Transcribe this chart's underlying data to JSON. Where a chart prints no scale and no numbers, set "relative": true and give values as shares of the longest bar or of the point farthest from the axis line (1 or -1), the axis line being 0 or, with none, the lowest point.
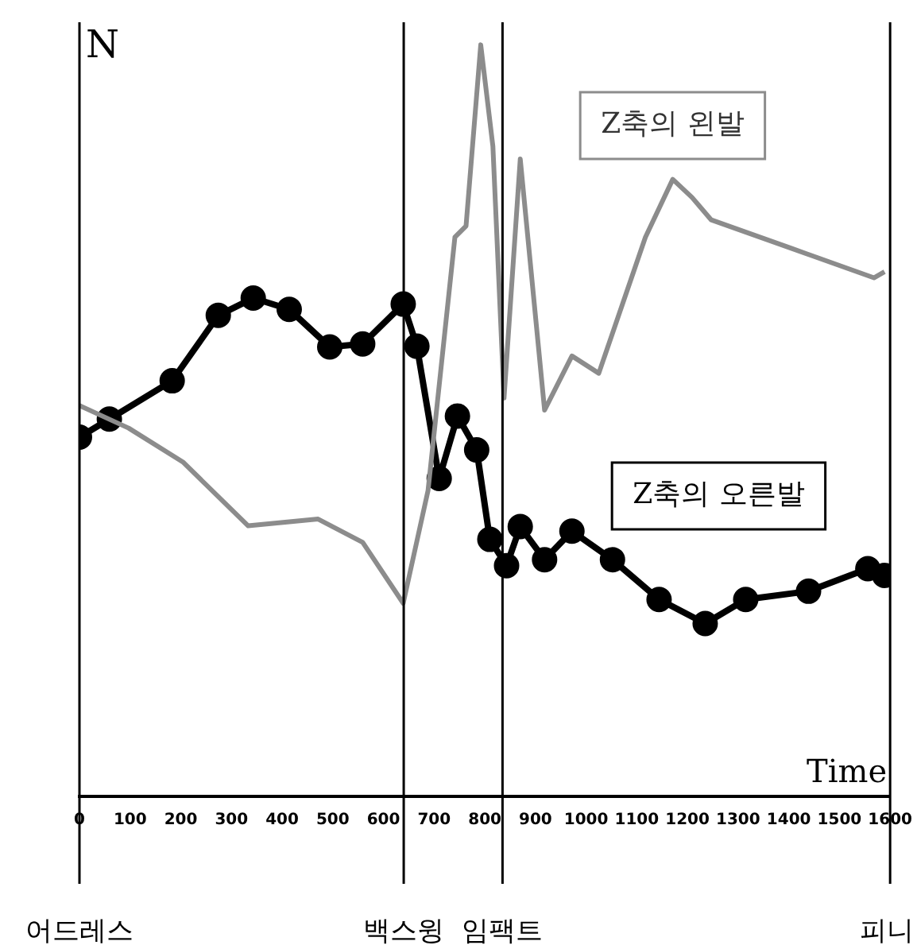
{
  "chart_data": {
    "type": "line",
    "relative": true,
    "xlabel": "Time",
    "ylabel": "N",
    "legend": false,
    "grid": false,
    "xlim": [
      0,
      1600
    ],
    "xticks": [
      0,
      100,
      200,
      300,
      400,
      500,
      600,
      700,
      800,
      900,
      1000,
      1100,
      1200,
      1300,
      1400,
      1500,
      1600
    ],
    "series": [
      {
        "name": "Z축의 왼발",
        "color": "#8c8c8c",
        "marker": "none",
        "x": [
          0,
          97,
          204,
          333,
          471,
          559,
          639,
          688,
          741,
          763,
          792,
          816,
          838,
          870,
          918,
          972,
          1025,
          1117,
          1171,
          1209,
          1247,
          1406,
          1568,
          1589
        ],
        "values": [
          0.52,
          0.49,
          0.445,
          0.36,
          0.369,
          0.338,
          0.257,
          0.407,
          0.744,
          0.759,
          1,
          0.865,
          0.53,
          0.848,
          0.514,
          0.586,
          0.563,
          0.744,
          0.821,
          0.797,
          0.767,
          0.729,
          0.69,
          0.698
        ]
      },
      {
        "name": "Z축의 오른발",
        "color": "#000000",
        "marker": "circle",
        "x": [
          0,
          59,
          183,
          274,
          343,
          414,
          494,
          559,
          639,
          666,
          710,
          746,
          784,
          810,
          843,
          870,
          918,
          972,
          1052,
          1144,
          1235,
          1315,
          1439,
          1556,
          1589
        ],
        "values": [
          0.478,
          0.502,
          0.553,
          0.64,
          0.663,
          0.648,
          0.598,
          0.602,
          0.655,
          0.599,
          0.423,
          0.506,
          0.461,
          0.342,
          0.307,
          0.359,
          0.315,
          0.353,
          0.315,
          0.262,
          0.23,
          0.262,
          0.273,
          0.303,
          0.294
        ]
      }
    ],
    "ref_lines": [
      {
        "axis": "x",
        "value": 0,
        "label": "어드레스",
        "color": "#000000"
      },
      {
        "axis": "x",
        "value": 640,
        "label": "백스윙",
        "color": "#000000"
      },
      {
        "axis": "x",
        "value": 835,
        "label": "임팩트",
        "color": "#000000"
      },
      {
        "axis": "x",
        "value": 1600,
        "label": "피니",
        "color": "#000000"
      }
    ]
  }
}
